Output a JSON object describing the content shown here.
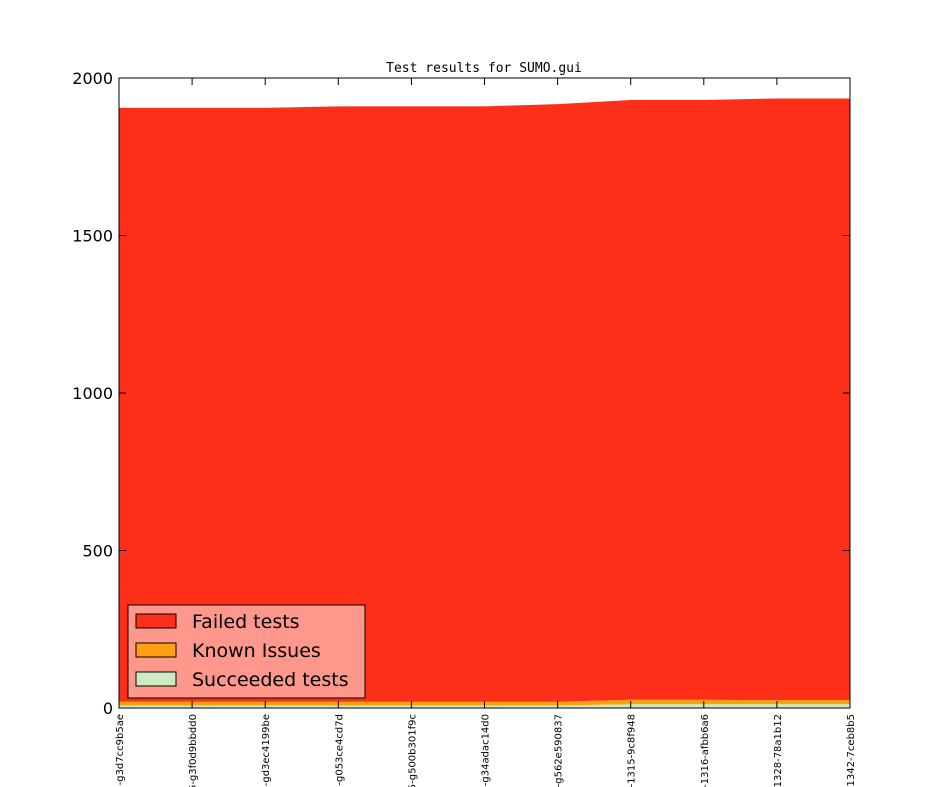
{
  "chart_data": {
    "type": "area",
    "title": "Test results for SUMO.gui",
    "xlabel": "",
    "ylabel": "",
    "ylim": [
      0,
      2000
    ],
    "yticks": [
      0,
      500,
      1000,
      1500,
      2000
    ],
    "grid": false,
    "stacked": true,
    "legend_placement": "lower-left",
    "categories": [
      "-g3d7cc9b5ae",
      "5-g3f0d9bbdd0",
      "-gd3ec4199be",
      "-g053ce4cd7d",
      "5-g500b301f9c",
      "-g34adac14d0",
      "-g562e590837",
      "-1315-9c8f948",
      "-1316-afbb6a6",
      "1328-78a1b12",
      "1342-7ceb8b5"
    ],
    "series": [
      {
        "name": "Succeeded tests",
        "color": "#ccebc5",
        "values": [
          8,
          8,
          8,
          8,
          8,
          8,
          8,
          12,
          12,
          12,
          12
        ]
      },
      {
        "name": "Known Issues",
        "color": "#fe9f0f",
        "values": [
          12,
          12,
          12,
          12,
          12,
          12,
          12,
          14,
          14,
          13,
          13
        ]
      },
      {
        "name": "Failed tests",
        "color": "#fe2f19",
        "values": [
          1885,
          1885,
          1885,
          1890,
          1890,
          1890,
          1897,
          1904,
          1904,
          1910,
          1910
        ]
      }
    ]
  },
  "legend": {
    "items": [
      "Failed tests",
      "Known Issues",
      "Succeeded tests"
    ],
    "background": "#fe978c"
  }
}
